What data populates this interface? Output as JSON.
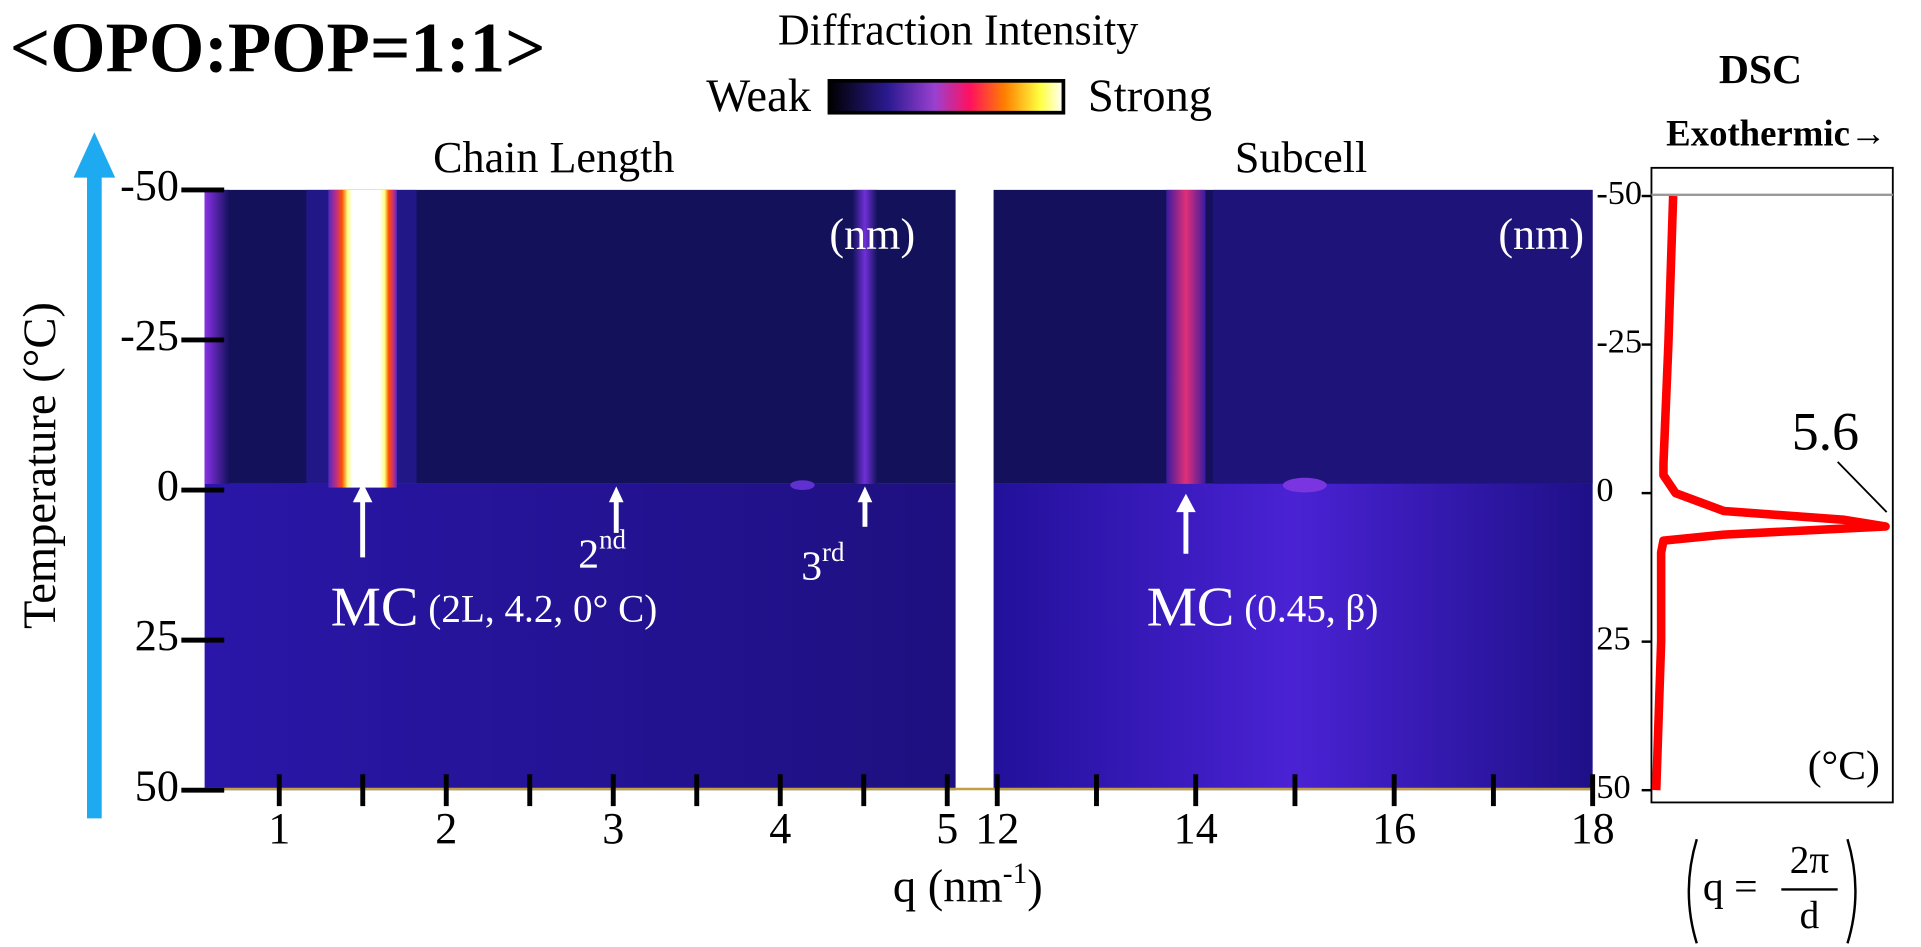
{
  "title": "<OPO:POP=1:1>",
  "colorbar": {
    "title": "Diffraction Intensity",
    "low": "Weak",
    "high": "Strong"
  },
  "y_label": "Temperature (°C)",
  "x_label": {
    "text": "q (nm",
    "sup": "-1",
    "end": ")"
  },
  "formula": {
    "lhs": "q =",
    "numerator": "2π",
    "denominator": "d"
  },
  "chart_data": [
    {
      "type": "heatmap",
      "title": "Chain Length",
      "xlim": [
        0.553,
        5.05
      ],
      "xticks": [
        1,
        2,
        3,
        4,
        5
      ],
      "xminor": [
        1.5,
        2.5,
        3.5,
        4.5
      ],
      "ylim": [
        -50,
        50
      ],
      "yticks": [
        -50,
        -25,
        0,
        25,
        50
      ],
      "unit_label": "(nm)",
      "annotations": [
        {
          "text": "MC",
          "detail": "(2L, 4.2,  0°  C)"
        },
        {
          "text": "2",
          "sup": "nd"
        },
        {
          "text": "3",
          "sup": "rd"
        }
      ]
    },
    {
      "type": "heatmap",
      "title": "Subcell",
      "xlim": [
        12,
        18
      ],
      "xticks": [
        12,
        14,
        16,
        18
      ],
      "xminor": [
        13,
        15,
        17
      ],
      "ylim": [
        -50,
        50
      ],
      "unit_label": "(nm)",
      "annotations": [
        {
          "text": "MC",
          "detail": "(0.45, β)"
        }
      ]
    },
    {
      "type": "line",
      "title": "DSC",
      "subtitle": "Exothermic→",
      "color": "#ff0000",
      "x": [
        -50,
        -25,
        -5,
        -3,
        0,
        3,
        4.5,
        5.6,
        7,
        8,
        10,
        25,
        50
      ],
      "values": [
        0.09,
        0.07,
        0.05,
        0.05,
        0.1,
        0.3,
        0.8,
        0.97,
        0.3,
        0.05,
        0.04,
        0.04,
        0.02
      ],
      "xlim": [
        0,
        1
      ],
      "ylim": [
        -50,
        50
      ],
      "yticks": [
        -50,
        -25,
        0,
        25,
        50
      ],
      "unit_label": "(°C)",
      "annotations": [
        {
          "text": "5.6"
        }
      ]
    }
  ]
}
